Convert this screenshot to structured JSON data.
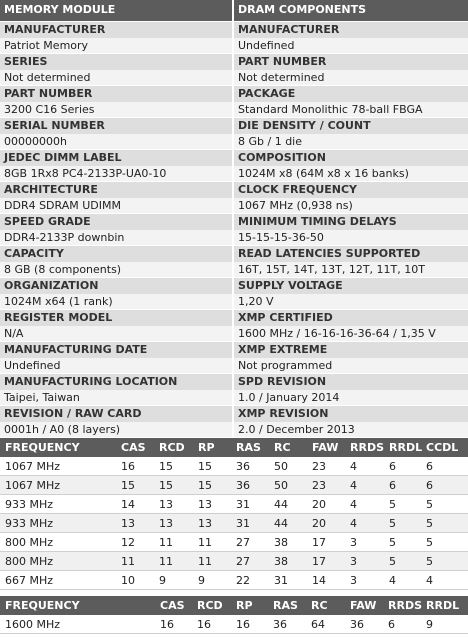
{
  "memory_module": {
    "title": "MEMORY MODULE",
    "fields": [
      {
        "label": "MANUFACTURER",
        "value": "Patriot Memory"
      },
      {
        "label": "SERIES",
        "value": "Not determined"
      },
      {
        "label": "PART NUMBER",
        "value": "3200 C16 Series"
      },
      {
        "label": "SERIAL NUMBER",
        "value": "00000000h"
      },
      {
        "label": "JEDEC DIMM LABEL",
        "value": "8GB 1Rx8 PC4-2133P-UA0-10"
      },
      {
        "label": "ARCHITECTURE",
        "value": "DDR4 SDRAM UDIMM"
      },
      {
        "label": "SPEED GRADE",
        "value": "DDR4-2133P downbin"
      },
      {
        "label": "CAPACITY",
        "value": "8 GB (8 components)"
      },
      {
        "label": "ORGANIZATION",
        "value": "1024M x64 (1 rank)"
      },
      {
        "label": "REGISTER MODEL",
        "value": "N/A"
      },
      {
        "label": "MANUFACTURING DATE",
        "value": "Undefined"
      },
      {
        "label": "MANUFACTURING LOCATION",
        "value": "Taipei, Taiwan"
      },
      {
        "label": "REVISION / RAW CARD",
        "value": "0001h / A0 (8 layers)"
      }
    ]
  },
  "dram_components": {
    "title": "DRAM COMPONENTS",
    "fields": [
      {
        "label": "MANUFACTURER",
        "value": "Undefined"
      },
      {
        "label": "PART NUMBER",
        "value": "Not determined"
      },
      {
        "label": "PACKAGE",
        "value": "Standard Monolithic 78-ball FBGA"
      },
      {
        "label": "DIE DENSITY / COUNT",
        "value": "8 Gb / 1 die"
      },
      {
        "label": "COMPOSITION",
        "value": "1024M x8 (64M x8 x 16 banks)"
      },
      {
        "label": "CLOCK FREQUENCY",
        "value": "1067 MHz (0,938 ns)"
      },
      {
        "label": "MINIMUM TIMING DELAYS",
        "value": "15-15-15-36-50"
      },
      {
        "label": "READ LATENCIES SUPPORTED",
        "value": "16T, 15T, 14T, 13T, 12T, 11T, 10T"
      },
      {
        "label": "SUPPLY VOLTAGE",
        "value": "1,20 V"
      },
      {
        "label": "XMP CERTIFIED",
        "value": "1600 MHz / 16-16-16-36-64 / 1,35 V"
      },
      {
        "label": "XMP EXTREME",
        "value": "Not programmed"
      },
      {
        "label": "SPD REVISION",
        "value": "1.0 / January 2014"
      },
      {
        "label": "XMP REVISION",
        "value": "2.0 / December 2013"
      }
    ]
  },
  "timings": {
    "columns": [
      "FREQUENCY",
      "CAS",
      "RCD",
      "RP",
      "RAS",
      "RC",
      "FAW",
      "RRDS",
      "RRDL",
      "CCDL"
    ],
    "rows": [
      [
        "1067 MHz",
        16,
        15,
        15,
        36,
        50,
        23,
        4,
        6,
        6
      ],
      [
        "1067 MHz",
        15,
        15,
        15,
        36,
        50,
        23,
        4,
        6,
        6
      ],
      [
        "933 MHz",
        14,
        13,
        13,
        31,
        44,
        20,
        4,
        5,
        5
      ],
      [
        "933 MHz",
        13,
        13,
        13,
        31,
        44,
        20,
        4,
        5,
        5
      ],
      [
        "800 MHz",
        12,
        11,
        11,
        27,
        38,
        17,
        3,
        5,
        5
      ],
      [
        "800 MHz",
        11,
        11,
        11,
        27,
        38,
        17,
        3,
        5,
        5
      ],
      [
        "667 MHz",
        10,
        9,
        9,
        22,
        31,
        14,
        3,
        4,
        4
      ]
    ]
  },
  "xmp_timings": {
    "columns": [
      "FREQUENCY",
      "CAS",
      "RCD",
      "RP",
      "RAS",
      "RC",
      "FAW",
      "RRDS",
      "RRDL"
    ],
    "rows": [
      [
        "1600 MHz",
        16,
        16,
        16,
        36,
        64,
        36,
        6,
        9
      ]
    ]
  }
}
